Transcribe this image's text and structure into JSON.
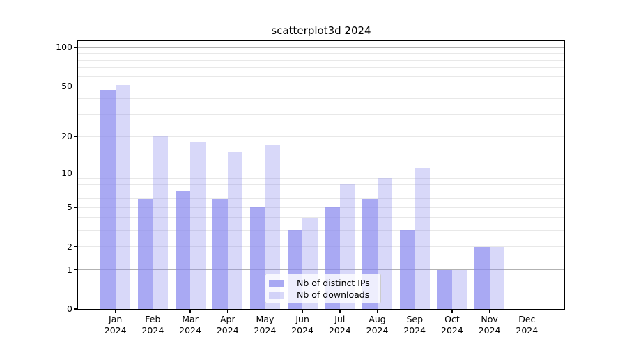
{
  "chart_data": {
    "type": "bar",
    "title": "scatterplot3d 2024",
    "year": "2024",
    "categories": [
      "Jan",
      "Feb",
      "Mar",
      "Apr",
      "May",
      "Jun",
      "Jul",
      "Aug",
      "Sep",
      "Oct",
      "Nov",
      "Dec"
    ],
    "series": [
      {
        "key": "distinct-ips",
        "name": "Nb of distinct IPs",
        "values": [
          47,
          6,
          7,
          6,
          5,
          3,
          5,
          6,
          3,
          1,
          2,
          0
        ],
        "color": "#8888ee",
        "opacity": 0.72
      },
      {
        "key": "downloads",
        "name": "Nb of downloads",
        "values": [
          51,
          20,
          18,
          15,
          17,
          4,
          8,
          9,
          11,
          1,
          2,
          0
        ],
        "color": "#8888ee",
        "opacity": 0.33
      }
    ],
    "xlabel": "",
    "ylabel": "",
    "yscale": "log1p",
    "ylim": [
      0,
      112
    ],
    "yticks": [
      0,
      1,
      2,
      5,
      10,
      20,
      50,
      100
    ],
    "gridlines": {
      "major": [
        1,
        10,
        100
      ],
      "minor": [
        2,
        3,
        4,
        5,
        6,
        7,
        8,
        9,
        20,
        30,
        40,
        50,
        60,
        70,
        80,
        90
      ]
    },
    "legend": {
      "position": "lower center"
    },
    "colors": {
      "major_grid": "#b2b2b2",
      "minor_grid": "#e8e8e8",
      "axis": "#000000",
      "text": "#000000",
      "legend_border": "#cccccc",
      "legend_bg": "rgba(255,255,255,0.8)"
    }
  }
}
